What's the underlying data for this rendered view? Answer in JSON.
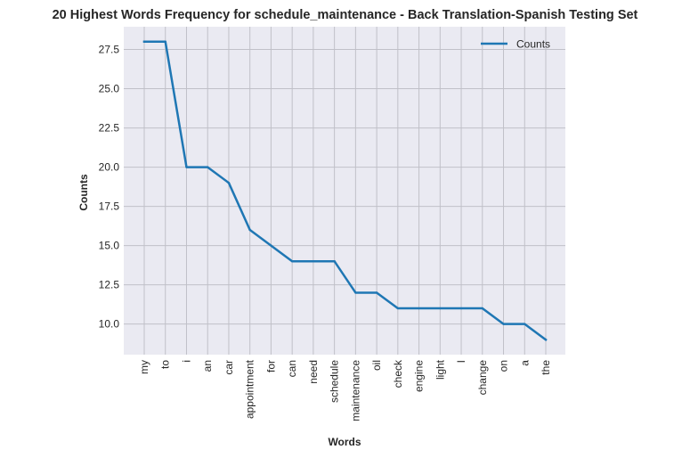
{
  "chart_data": {
    "type": "line",
    "title": "20 Highest Words Frequency for schedule_maintenance - Back Translation-Spanish Testing Set",
    "xlabel": "Words",
    "ylabel": "Counts",
    "categories": [
      "my",
      "to",
      "i",
      "an",
      "car",
      "appointment",
      "for",
      "can",
      "need",
      "schedule",
      "maintenance",
      "oil",
      "check",
      "engine",
      "light",
      "I",
      "change",
      "on",
      "a",
      "the"
    ],
    "series": [
      {
        "name": "Counts",
        "values": [
          28,
          28,
          20,
          20,
          19,
          16,
          15,
          14,
          14,
          14,
          12,
          12,
          11,
          11,
          11,
          11,
          11,
          10,
          10,
          9
        ],
        "color": "#1f77b4"
      }
    ],
    "ylim": [
      8.05,
      28.95
    ],
    "yticks": [
      "10.0",
      "12.5",
      "15.0",
      "17.5",
      "20.0",
      "22.5",
      "25.0",
      "27.5"
    ],
    "grid": true,
    "legend": "top-right",
    "colors": {
      "plot_background": "#eaeaf2",
      "grid": "#c0c0c8"
    }
  }
}
